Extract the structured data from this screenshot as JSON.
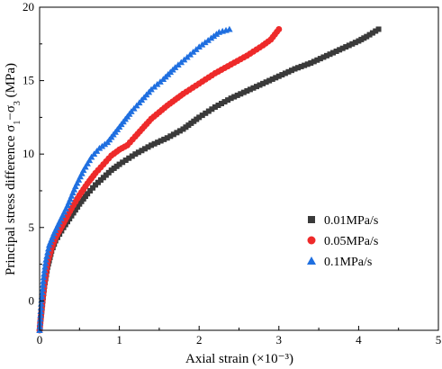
{
  "chart_data": {
    "type": "scatter",
    "xlabel": "Axial strain (×10⁻³)",
    "ylabel_parts": {
      "main": "Principal stress difference σ",
      "sub1": "1",
      "dash": "−σ",
      "sub3": "3",
      "unit": " (MPa)"
    },
    "xlim": [
      0,
      5
    ],
    "ylim": [
      -2,
      20
    ],
    "xticks": [
      "0",
      "1",
      "2",
      "3",
      "4",
      "5"
    ],
    "yticks": [
      "0",
      "5",
      "10",
      "15",
      "20"
    ],
    "legend_position": "lower-right",
    "series": [
      {
        "name": "0.01MPa/s",
        "marker": "square",
        "color": "#3a3a3a",
        "points": [
          [
            0.0,
            -2.0
          ],
          [
            0.03,
            -0.5
          ],
          [
            0.06,
            1.0
          ],
          [
            0.1,
            2.3
          ],
          [
            0.15,
            3.4
          ],
          [
            0.2,
            4.1
          ],
          [
            0.3,
            5.0
          ],
          [
            0.4,
            5.8
          ],
          [
            0.5,
            6.6
          ],
          [
            0.6,
            7.3
          ],
          [
            0.7,
            7.9
          ],
          [
            0.8,
            8.4
          ],
          [
            0.9,
            8.9
          ],
          [
            1.0,
            9.3
          ],
          [
            1.2,
            10.0
          ],
          [
            1.4,
            10.6
          ],
          [
            1.6,
            11.1
          ],
          [
            1.8,
            11.7
          ],
          [
            2.0,
            12.5
          ],
          [
            2.2,
            13.2
          ],
          [
            2.4,
            13.8
          ],
          [
            2.6,
            14.3
          ],
          [
            2.8,
            14.8
          ],
          [
            3.0,
            15.3
          ],
          [
            3.2,
            15.8
          ],
          [
            3.4,
            16.2
          ],
          [
            3.6,
            16.7
          ],
          [
            3.8,
            17.2
          ],
          [
            4.0,
            17.7
          ],
          [
            4.1,
            18.0
          ],
          [
            4.25,
            18.5
          ]
        ]
      },
      {
        "name": "0.05MPa/s",
        "marker": "circle",
        "color": "#ee2a2a",
        "points": [
          [
            0.0,
            -2.0
          ],
          [
            0.03,
            -0.3
          ],
          [
            0.06,
            1.2
          ],
          [
            0.1,
            2.6
          ],
          [
            0.15,
            3.6
          ],
          [
            0.2,
            4.3
          ],
          [
            0.3,
            5.3
          ],
          [
            0.4,
            6.3
          ],
          [
            0.5,
            7.2
          ],
          [
            0.6,
            8.0
          ],
          [
            0.7,
            8.7
          ],
          [
            0.8,
            9.3
          ],
          [
            0.9,
            9.9
          ],
          [
            1.0,
            10.3
          ],
          [
            1.1,
            10.6
          ],
          [
            1.2,
            11.2
          ],
          [
            1.4,
            12.4
          ],
          [
            1.6,
            13.3
          ],
          [
            1.8,
            14.1
          ],
          [
            2.0,
            14.8
          ],
          [
            2.2,
            15.5
          ],
          [
            2.4,
            16.1
          ],
          [
            2.6,
            16.7
          ],
          [
            2.8,
            17.4
          ],
          [
            2.9,
            17.8
          ],
          [
            3.0,
            18.5
          ]
        ]
      },
      {
        "name": "0.1MPa/s",
        "marker": "triangle",
        "color": "#1f6fe0",
        "points": [
          [
            0.0,
            -2.0
          ],
          [
            0.02,
            -0.2
          ],
          [
            0.05,
            1.6
          ],
          [
            0.08,
            2.8
          ],
          [
            0.12,
            3.8
          ],
          [
            0.18,
            4.6
          ],
          [
            0.25,
            5.4
          ],
          [
            0.35,
            6.5
          ],
          [
            0.45,
            7.8
          ],
          [
            0.55,
            8.9
          ],
          [
            0.65,
            9.8
          ],
          [
            0.75,
            10.4
          ],
          [
            0.85,
            10.8
          ],
          [
            0.95,
            11.5
          ],
          [
            1.05,
            12.2
          ],
          [
            1.15,
            12.9
          ],
          [
            1.25,
            13.5
          ],
          [
            1.4,
            14.4
          ],
          [
            1.55,
            15.1
          ],
          [
            1.7,
            15.9
          ],
          [
            1.85,
            16.6
          ],
          [
            2.0,
            17.3
          ],
          [
            2.15,
            17.9
          ],
          [
            2.25,
            18.3
          ],
          [
            2.38,
            18.5
          ]
        ]
      }
    ]
  }
}
